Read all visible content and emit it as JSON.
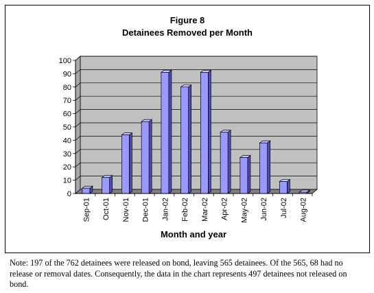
{
  "figure_label": "Figure 8",
  "chart_data": {
    "type": "bar",
    "title": "Detainees Removed per Month",
    "xlabel": "Month and year",
    "ylabel": "",
    "categories": [
      "Sep-01",
      "Oct-01",
      "Nov-01",
      "Dec-01",
      "Jan-02",
      "Feb-02",
      "Mar-02",
      "Apr-02",
      "May-02",
      "Jun-02",
      "Jul-02",
      "Aug-02"
    ],
    "values": [
      4,
      12,
      44,
      54,
      91,
      80,
      91,
      46,
      27,
      38,
      9,
      1
    ],
    "ylim": [
      0,
      100
    ],
    "yticks": [
      0,
      10,
      20,
      30,
      40,
      50,
      60,
      70,
      80,
      90,
      100
    ],
    "grid": true,
    "legend": "none",
    "colors": {
      "bar_front": "#9999ff",
      "bar_side": "#4d4db3",
      "bar_top": "#ccccff",
      "plot_wall": "#c0c0c0",
      "floor": "#808080"
    }
  },
  "note": "Note:  197 of the 762 detainees were released on bond, leaving 565 detainees. Of the 565, 68 had no release or removal dates.  Consequently, the data in the chart represents 497 detainees not released on bond."
}
